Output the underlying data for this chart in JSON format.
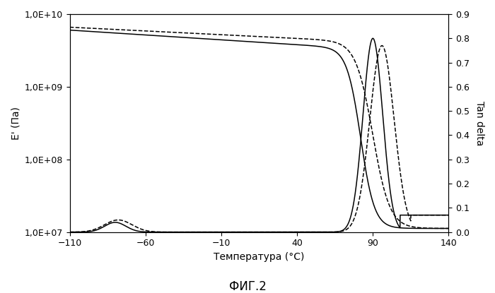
{
  "title": "",
  "xlabel": "Температура (°C)",
  "ylabel_left": "E' (Па)",
  "ylabel_right": "Tan delta",
  "caption": "ФИГ.2",
  "xlim": [
    -110,
    140
  ],
  "ylim_left": [
    10000000.0,
    10000000000.0
  ],
  "ylim_right": [
    0,
    0.9
  ],
  "xticks": [
    -110,
    -60,
    -10,
    40,
    90,
    140
  ],
  "yticks_right": [
    0,
    0.1,
    0.2,
    0.3,
    0.4,
    0.5,
    0.6,
    0.7,
    0.8,
    0.9
  ],
  "background": "#ffffff",
  "line_color": "#000000"
}
